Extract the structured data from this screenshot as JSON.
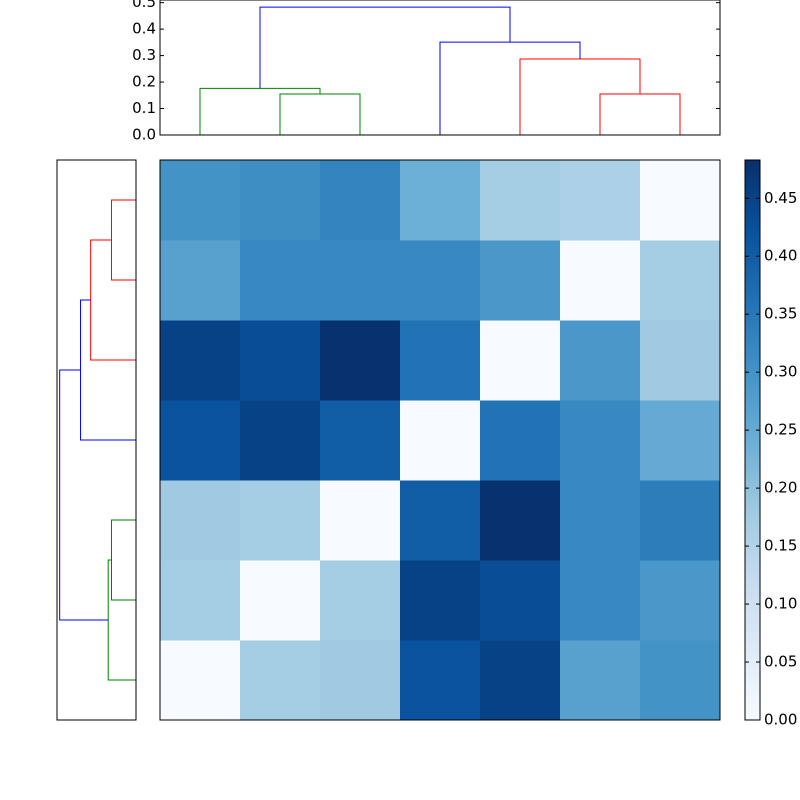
{
  "chart_data": {
    "type": "heatmap",
    "colormap": "Blues",
    "clim": [
      0,
      0.483
    ],
    "colorbar_ticks": [
      {
        "value": 0.0,
        "label": "0.00"
      },
      {
        "value": 0.05,
        "label": "0.05"
      },
      {
        "value": 0.1,
        "label": "0.10"
      },
      {
        "value": 0.15,
        "label": "0.15"
      },
      {
        "value": 0.2,
        "label": "0.20"
      },
      {
        "value": 0.25,
        "label": "0.25"
      },
      {
        "value": 0.3,
        "label": "0.30"
      },
      {
        "value": 0.35,
        "label": "0.35"
      },
      {
        "value": 0.4,
        "label": "0.40"
      },
      {
        "value": 0.45,
        "label": "0.45"
      }
    ],
    "matrix": [
      [
        0,
        0.17,
        0.18,
        0.42,
        0.45,
        0.27,
        0.3
      ],
      [
        0.17,
        0,
        0.17,
        0.45,
        0.43,
        0.32,
        0.29
      ],
      [
        0.18,
        0.17,
        0,
        0.4,
        0.48,
        0.32,
        0.34
      ],
      [
        0.42,
        0.45,
        0.4,
        0,
        0.36,
        0.32,
        0.25
      ],
      [
        0.45,
        0.43,
        0.48,
        0.36,
        0,
        0.29,
        0.18
      ],
      [
        0.27,
        0.32,
        0.32,
        0.32,
        0.29,
        0,
        0.17
      ],
      [
        0.3,
        0.31,
        0.33,
        0.24,
        0.17,
        0.16,
        0
      ]
    ],
    "dendrogram": {
      "top_ylim": [
        0,
        0.51
      ],
      "top_yticks": [
        {
          "value": 0.0,
          "label": "0.0"
        },
        {
          "value": 0.1,
          "label": "0.1"
        },
        {
          "value": 0.2,
          "label": "0.2"
        },
        {
          "value": 0.3,
          "label": "0.3"
        },
        {
          "value": 0.4,
          "label": "0.4"
        },
        {
          "value": 0.5,
          "label": "0.5"
        }
      ],
      "side_xlim": [
        0.5,
        0
      ],
      "links": [
        {
          "left": 1,
          "right": 2,
          "height": 0.155,
          "color": "#008000"
        },
        {
          "left": 0,
          "right": 1.5,
          "height": 0.176,
          "color": "#008000"
        },
        {
          "left": 5,
          "right": 6,
          "height": 0.155,
          "color": "#ff0000"
        },
        {
          "left": 4,
          "right": 5.5,
          "height": 0.287,
          "color": "#ff0000"
        },
        {
          "left": 3,
          "right": 4.75,
          "height": 0.351,
          "color": "#0000ff"
        },
        {
          "left": 0.75,
          "right": 3.875,
          "height": 0.483,
          "color": "#0000ff"
        }
      ]
    }
  }
}
